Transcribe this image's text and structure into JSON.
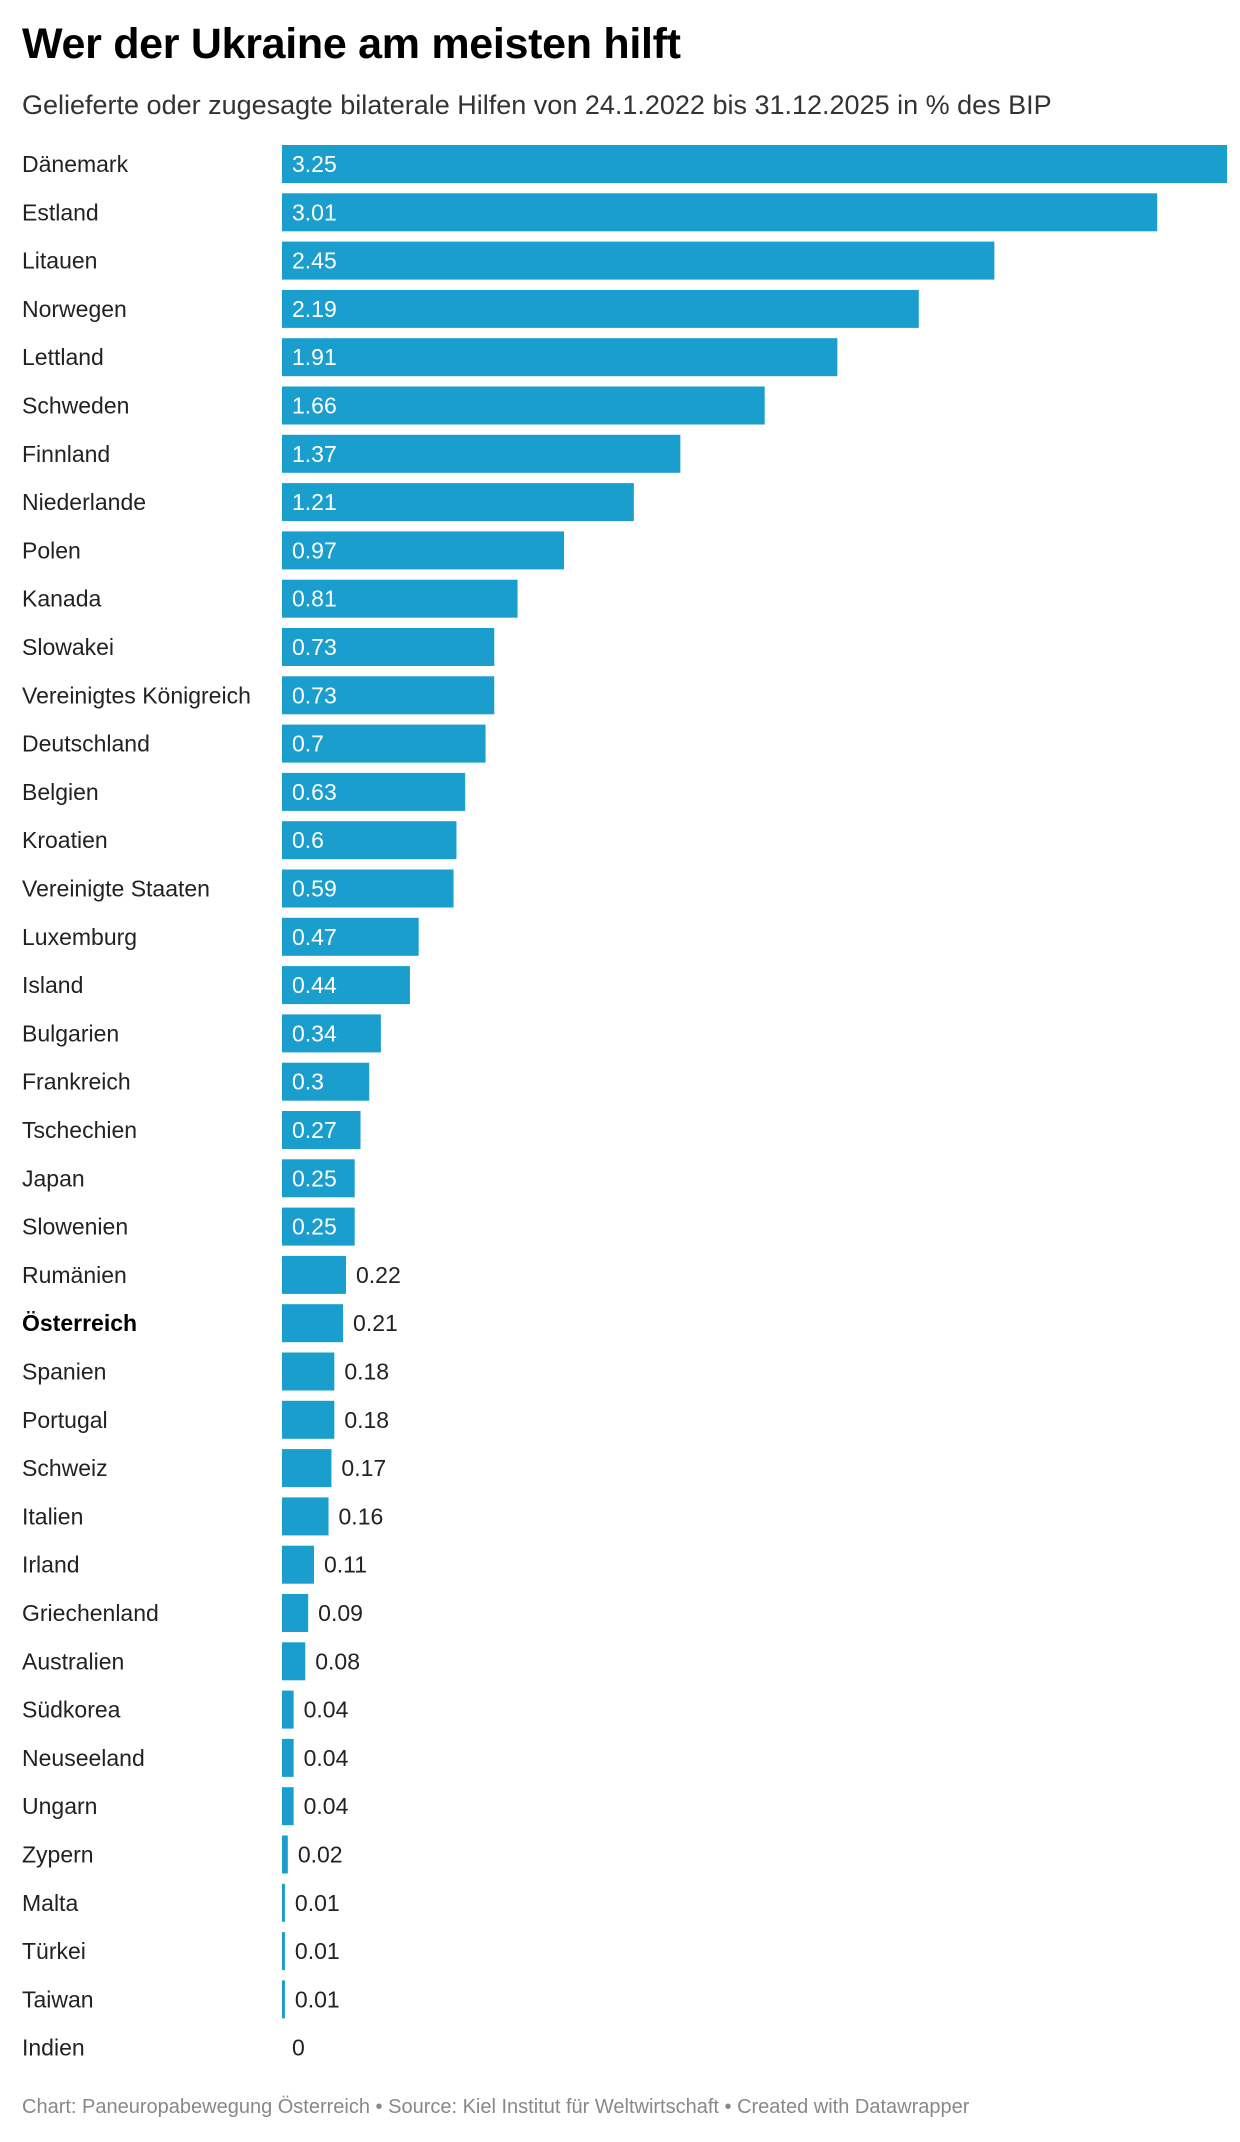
{
  "header": {
    "title": "Wer der Ukraine am meisten hilft",
    "subtitle": "Gelieferte oder zugesagte bilaterale Hilfen von 24.1.2022 bis 31.12.2025 in % des BIP"
  },
  "footer": {
    "text": "Chart: Paneuropabewegung Österreich • Source: Kiel Institut für Weltwirtschaft • Created with Datawrapper"
  },
  "chart_data": {
    "type": "bar",
    "orientation": "horizontal",
    "title": "Wer der Ukraine am meisten hilft",
    "subtitle": "Gelieferte oder zugesagte bilaterale Hilfen von 24.1.2022 bis 31.12.2025 in % des BIP",
    "xlabel": "",
    "ylabel": "",
    "xlim": [
      0,
      3.25
    ],
    "grid": false,
    "bar_color": "#199ecd",
    "highlight": "Österreich",
    "categories": [
      "Dänemark",
      "Estland",
      "Litauen",
      "Norwegen",
      "Lettland",
      "Schweden",
      "Finnland",
      "Niederlande",
      "Polen",
      "Kanada",
      "Slowakei",
      "Vereinigtes Königreich",
      "Deutschland",
      "Belgien",
      "Kroatien",
      "Vereinigte Staaten",
      "Luxemburg",
      "Island",
      "Bulgarien",
      "Frankreich",
      "Tschechien",
      "Japan",
      "Slowenien",
      "Rumänien",
      "Österreich",
      "Spanien",
      "Portugal",
      "Schweiz",
      "Italien",
      "Irland",
      "Griechenland",
      "Australien",
      "Südkorea",
      "Neuseeland",
      "Ungarn",
      "Zypern",
      "Malta",
      "Türkei",
      "Taiwan",
      "Indien"
    ],
    "values": [
      3.25,
      3.01,
      2.45,
      2.19,
      1.91,
      1.66,
      1.37,
      1.21,
      0.97,
      0.81,
      0.73,
      0.73,
      0.7,
      0.63,
      0.6,
      0.59,
      0.47,
      0.44,
      0.34,
      0.3,
      0.27,
      0.25,
      0.25,
      0.22,
      0.21,
      0.18,
      0.18,
      0.17,
      0.16,
      0.11,
      0.09,
      0.08,
      0.04,
      0.04,
      0.04,
      0.02,
      0.01,
      0.01,
      0.01,
      0
    ],
    "value_labels": [
      "3.25",
      "3.01",
      "2.45",
      "2.19",
      "1.91",
      "1.66",
      "1.37",
      "1.21",
      "0.97",
      "0.81",
      "0.73",
      "0.73",
      "0.7",
      "0.63",
      "0.6",
      "0.59",
      "0.47",
      "0.44",
      "0.34",
      "0.3",
      "0.27",
      "0.25",
      "0.25",
      "0.22",
      "0.21",
      "0.18",
      "0.18",
      "0.17",
      "0.16",
      "0.11",
      "0.09",
      "0.08",
      "0.04",
      "0.04",
      "0.04",
      "0.02",
      "0.01",
      "0.01",
      "0.01",
      "0"
    ]
  }
}
